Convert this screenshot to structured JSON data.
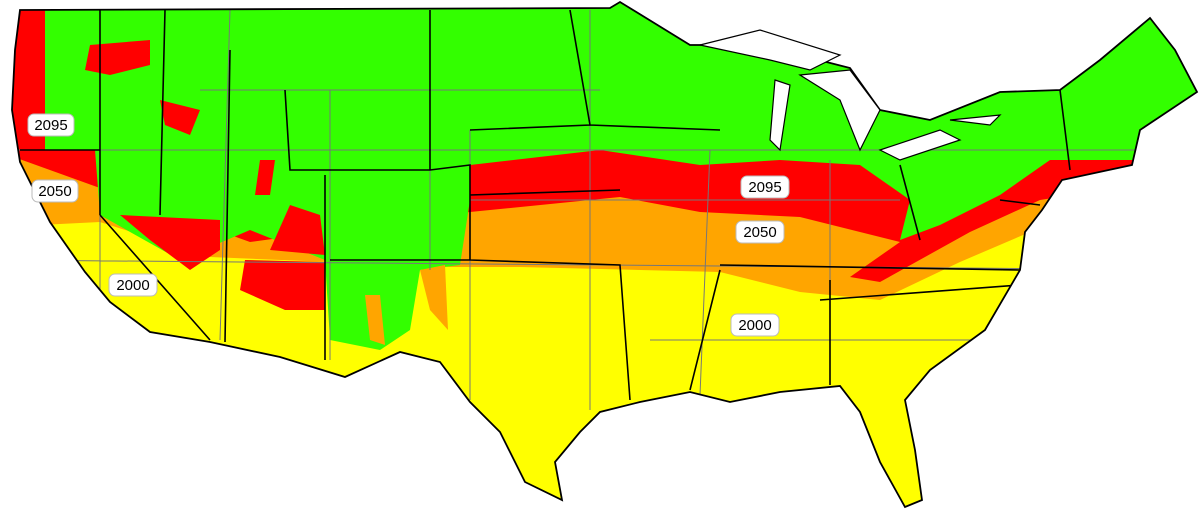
{
  "labels": [
    {
      "text": "2095"
    },
    {
      "text": "2050"
    },
    {
      "text": "2000"
    },
    {
      "text": "2095"
    },
    {
      "text": "2050"
    },
    {
      "text": "2000"
    }
  ]
}
